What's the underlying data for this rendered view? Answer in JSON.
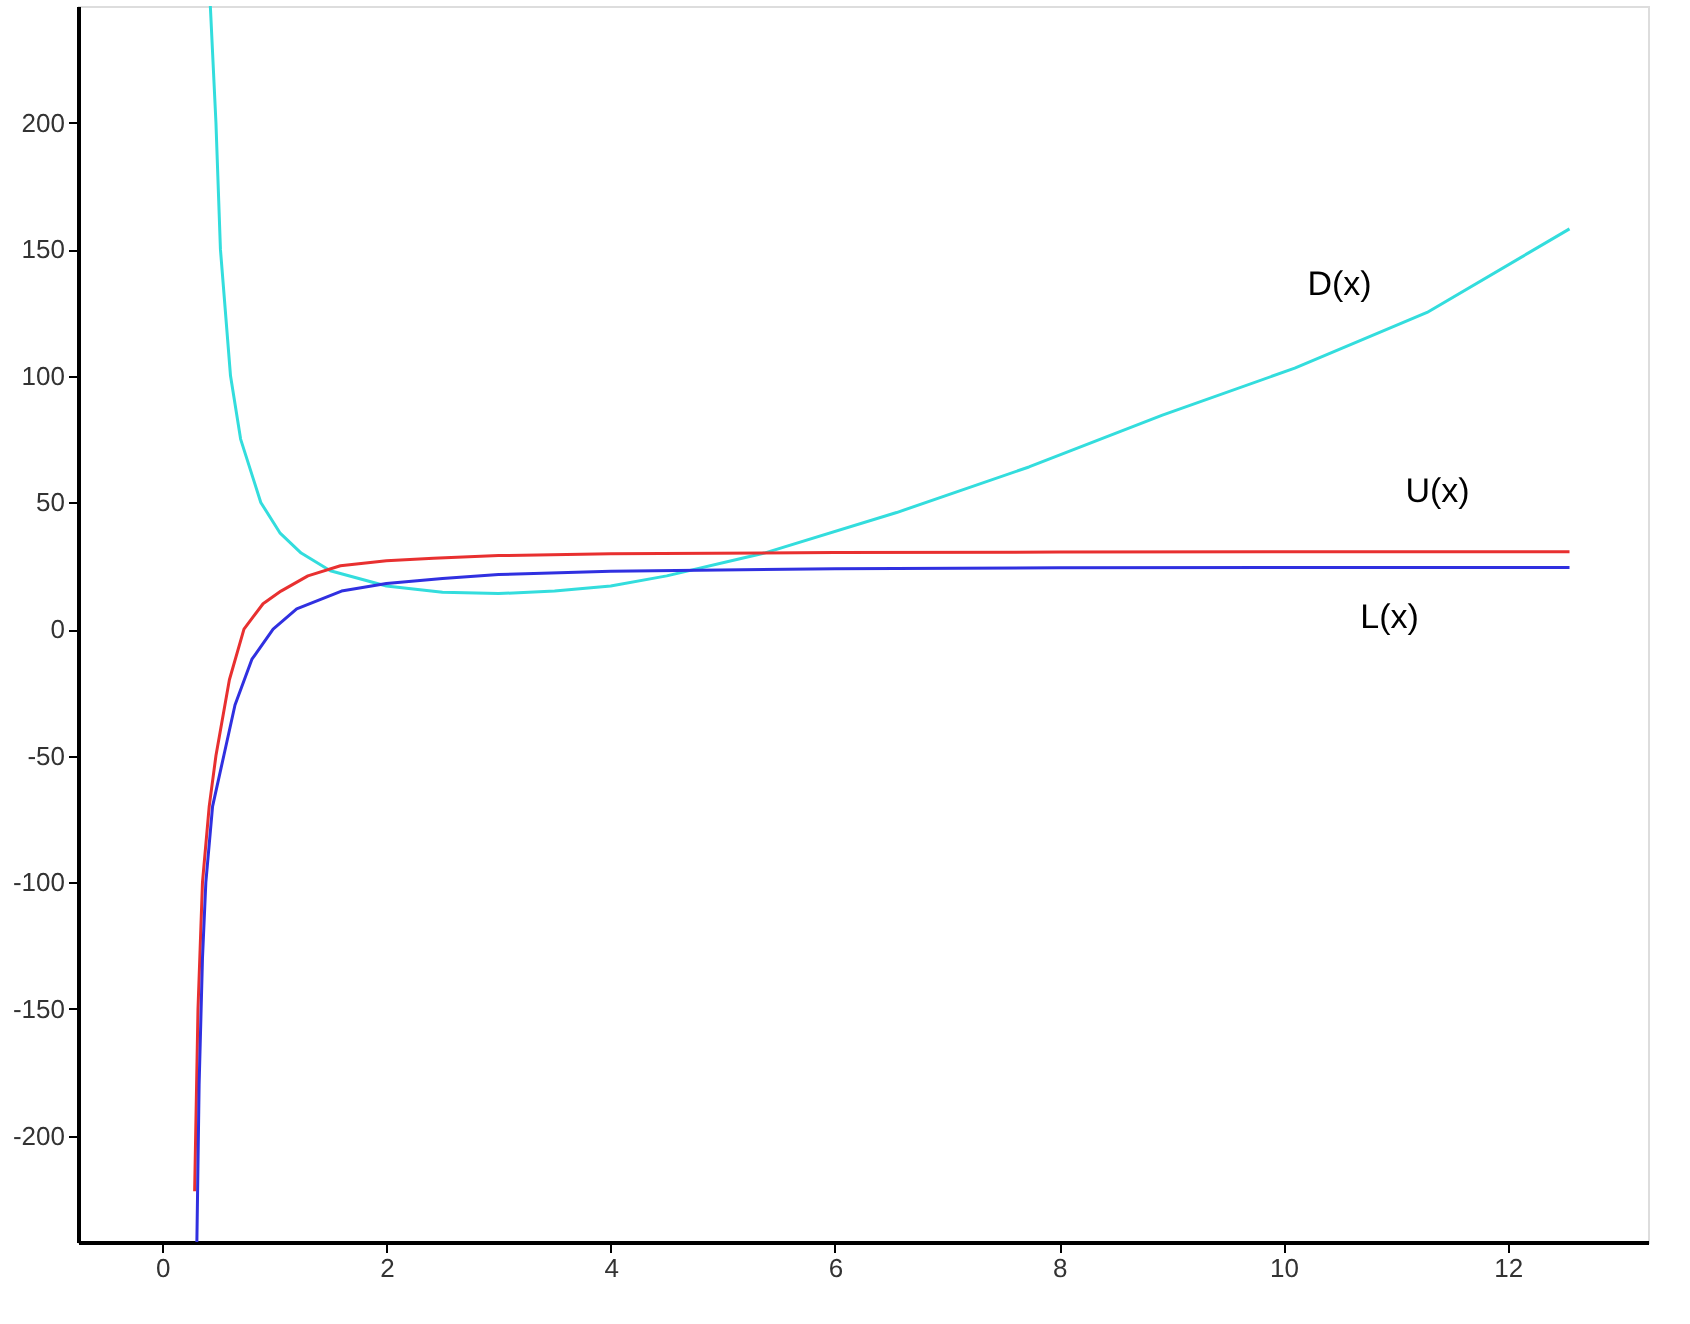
{
  "chart_data": {
    "type": "line",
    "xlim": [
      -0.75,
      13.25
    ],
    "ylim": [
      -242,
      246
    ],
    "xticks": [
      0,
      2,
      4,
      6,
      8,
      10,
      12
    ],
    "yticks": [
      -200,
      -150,
      -100,
      -50,
      0,
      50,
      100,
      150,
      200
    ],
    "grid": false,
    "marker": "none",
    "line_style": "solid",
    "series": [
      {
        "name": "D(x)",
        "color": "#33dddd",
        "x": [
          0.43,
          0.48,
          0.52,
          0.61,
          0.7,
          0.88,
          1.05,
          1.24,
          1.5,
          2,
          2.5,
          3,
          3.5,
          4,
          4.5,
          5.37,
          6.55,
          7.73,
          8.92,
          10.1,
          11.28,
          12.55
        ],
        "values": [
          246,
          200,
          150,
          100,
          75,
          50,
          38,
          30,
          23,
          17,
          14.5,
          14,
          15,
          17,
          21,
          30,
          46,
          64,
          84.5,
          103,
          125,
          158
        ]
      },
      {
        "name": "U(x)",
        "color": "#e83030",
        "x": [
          0.29,
          0.32,
          0.36,
          0.42,
          0.48,
          0.6,
          0.73,
          0.9,
          1.06,
          1.3,
          1.59,
          2,
          2.42,
          3,
          4,
          6,
          8,
          10,
          12.55
        ],
        "values": [
          -222,
          -150,
          -100,
          -70,
          -50,
          -20,
          0,
          10,
          15,
          21,
          25,
          27,
          28,
          29,
          29.7,
          30.2,
          30.4,
          30.5,
          30.5
        ]
      },
      {
        "name": "L(x)",
        "color": "#3030e0",
        "x": [
          0.31,
          0.33,
          0.36,
          0.39,
          0.45,
          0.55,
          0.65,
          0.8,
          0.99,
          1.2,
          1.6,
          2,
          2.5,
          3,
          4,
          6,
          8,
          10,
          12.55
        ],
        "values": [
          -242,
          -180,
          -130,
          -100,
          -70,
          -50,
          -30,
          -12,
          0,
          8,
          15,
          18,
          20,
          21.5,
          22.8,
          23.8,
          24.2,
          24.3,
          24.3
        ]
      }
    ]
  }
}
